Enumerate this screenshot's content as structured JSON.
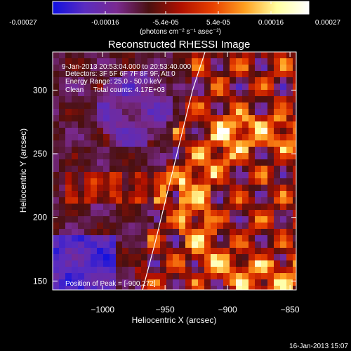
{
  "colorbar": {
    "ticks": [
      "-0.00027",
      "-0.00016",
      "-5.4e-05",
      "5.4e-05",
      "0.00016",
      "0.00027"
    ],
    "units": "(photons cm⁻² s⁻¹ asec⁻²)",
    "colors": [
      "#1010e0",
      "#5a2cc0",
      "#7a2a90",
      "#4a1010",
      "#b01000",
      "#e84000",
      "#ffa020",
      "#ffffa0",
      "#ffffff"
    ]
  },
  "title": "Reconstructed RHESSI Image",
  "info": {
    "time": "9-Jan-2013 20:53:04.000 to 20:53:40.000",
    "detectors": "Detectors: 3F 5F 6F 7F 8F 9F, Att 0",
    "energy": "Energy Range: 25.0 - 50.0 keV",
    "clean": "Clean     Total counts: 4.17E+03",
    "peak": "Position of Peak = [-900,272]"
  },
  "footer": {
    "date": "16-Jan-2013 15:07"
  },
  "chart_data": {
    "type": "heatmap",
    "title": "Reconstructed RHESSI Image",
    "xlabel": "Heliocentric X (arcsec)",
    "ylabel": "Heliocentric Y (arcsec)",
    "xlim": [
      -1040,
      -845
    ],
    "ylim": [
      143,
      330
    ],
    "x_ticks": [
      {
        "value": -1000,
        "label": "−1000"
      },
      {
        "value": -950,
        "label": "−950"
      },
      {
        "value": -900,
        "label": "−900"
      },
      {
        "value": -850,
        "label": "−850"
      }
    ],
    "y_ticks": [
      {
        "value": 150,
        "label": "150"
      },
      {
        "value": 200,
        "label": "200"
      },
      {
        "value": 250,
        "label": "250"
      },
      {
        "value": 300,
        "label": "300"
      }
    ],
    "colorbar_range": [
      -0.00027,
      0.00027
    ],
    "peak": {
      "x": -900,
      "y": 272
    },
    "limb_curve": [
      [
        -968,
        143
      ],
      [
        -958,
        180
      ],
      [
        -948,
        220
      ],
      [
        -938,
        260
      ],
      [
        -928,
        300
      ],
      [
        -918,
        330
      ]
    ]
  }
}
